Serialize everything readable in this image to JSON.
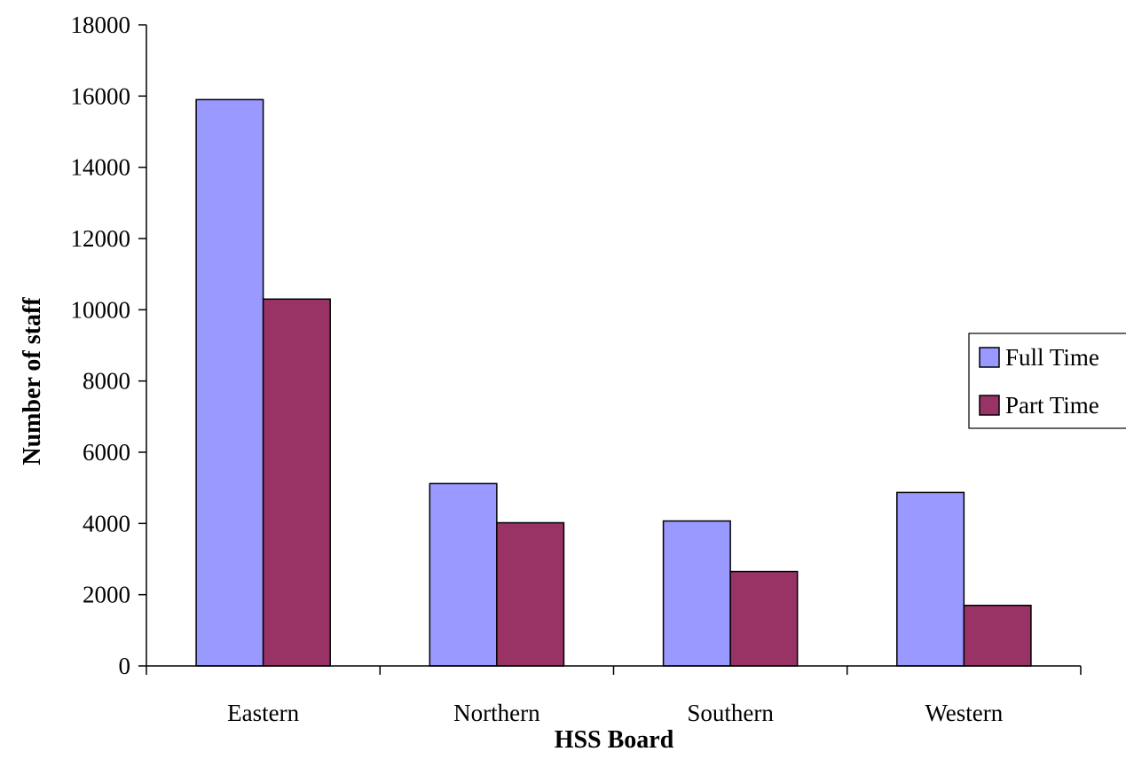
{
  "chart_data": {
    "type": "bar",
    "title": "",
    "xlabel": "HSS Board",
    "ylabel": "Number of staff",
    "categories": [
      "Eastern",
      "Northern",
      "Southern",
      "Western"
    ],
    "series": [
      {
        "name": "Full Time",
        "values": [
          15900,
          5120,
          4070,
          4870
        ],
        "color": "#9999ff"
      },
      {
        "name": "Part Time",
        "values": [
          10300,
          4020,
          2650,
          1700
        ],
        "color": "#993366"
      }
    ],
    "ylim": [
      0,
      18000
    ],
    "yticks": [
      0,
      2000,
      4000,
      6000,
      8000,
      10000,
      12000,
      14000,
      16000,
      18000
    ],
    "grid": false,
    "legend": "right"
  }
}
